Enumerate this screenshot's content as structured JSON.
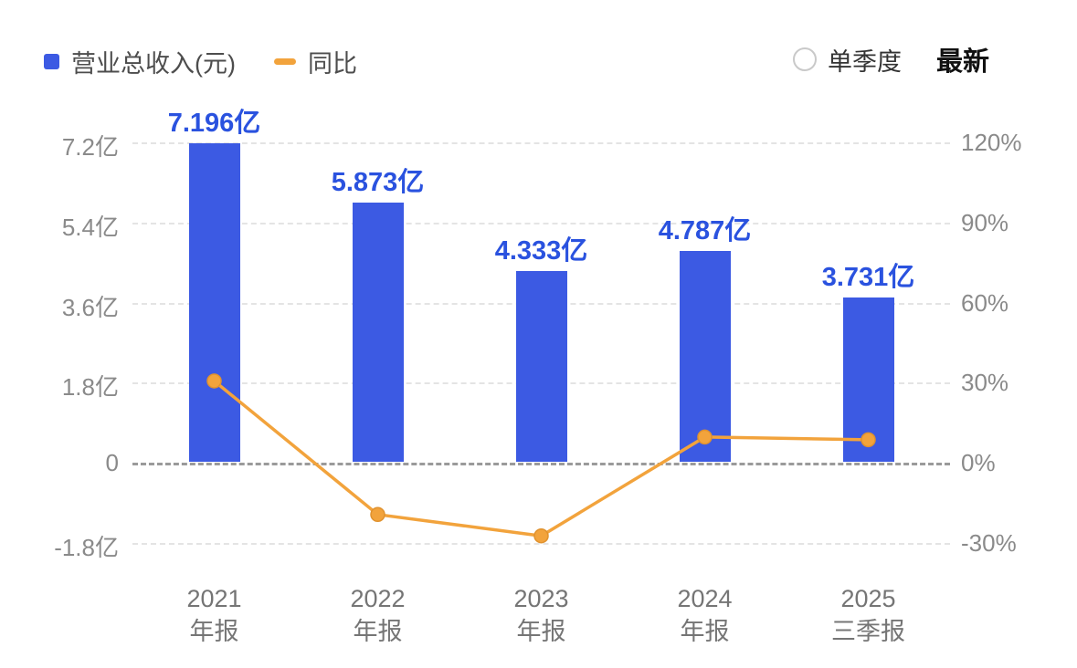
{
  "legend": {
    "revenue_label": "营业总收入(元)",
    "yoy_label": "同比"
  },
  "controls": {
    "single_quarter_label": "单季度",
    "latest_label": "最新"
  },
  "colors": {
    "bar": "#3c5ae3",
    "line": "#f2a33c",
    "value_label": "#2a52df",
    "grid": "#e4e4e4",
    "zero_line": "#9a9a9a",
    "axis_text": "#8a8a8a"
  },
  "chart_data": {
    "type": "bar",
    "title": "",
    "categories": [
      [
        "2021",
        "年报"
      ],
      [
        "2022",
        "年报"
      ],
      [
        "2023",
        "年报"
      ],
      [
        "2024",
        "年报"
      ],
      [
        "2025",
        "三季报"
      ]
    ],
    "series": [
      {
        "name": "营业总收入(元)",
        "type": "bar",
        "unit": "亿",
        "values": [
          7.196,
          5.873,
          4.333,
          4.787,
          3.731
        ],
        "labels": [
          "7.196亿",
          "5.873亿",
          "4.333亿",
          "4.787亿",
          "3.731亿"
        ]
      },
      {
        "name": "同比",
        "type": "line",
        "unit": "%",
        "values": [
          31,
          -19,
          -27,
          10,
          9
        ]
      }
    ],
    "left_axis": {
      "ticks": [
        "7.2亿",
        "5.4亿",
        "3.6亿",
        "1.8亿",
        "0",
        "-1.8亿"
      ],
      "values": [
        7.2,
        5.4,
        3.6,
        1.8,
        0,
        -1.8
      ]
    },
    "right_axis": {
      "ticks": [
        "120%",
        "90%",
        "60%",
        "30%",
        "0%",
        "-30%"
      ],
      "values": [
        120,
        90,
        60,
        30,
        0,
        -30
      ]
    },
    "grid": "dashed",
    "legend_position": "top-left"
  }
}
